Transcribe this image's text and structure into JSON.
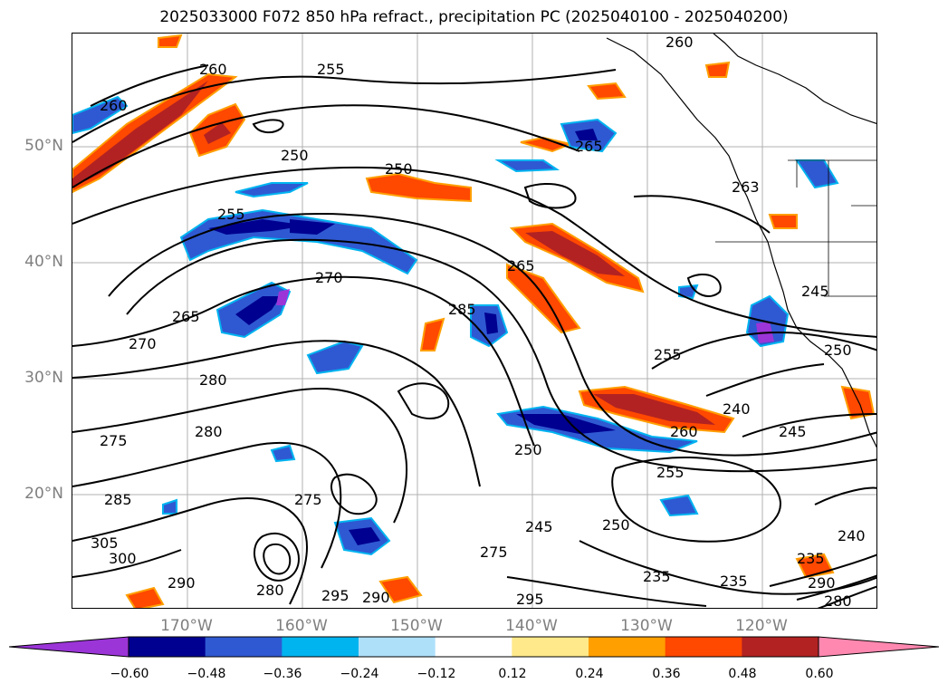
{
  "title": "2025033000 F072 850 hPa refract., precipitation PC (2025040100 - 2025040200)",
  "latitude_labels": [
    "50°N",
    "40°N",
    "30°N",
    "20°N"
  ],
  "longitude_labels": [
    "170°W",
    "160°W",
    "150°W",
    "140°W",
    "130°W",
    "120°W"
  ],
  "colorbar": {
    "colors": [
      "#9b35d8",
      "#000090",
      "#2f59d2",
      "#00b4f0",
      "#aee0fa",
      "#ffffff",
      "#ffe98a",
      "#ff9f00",
      "#ff4800",
      "#b22222",
      "#ff88b0"
    ],
    "tick_labels": [
      "−0.60",
      "−0.48",
      "−0.36",
      "−0.24",
      "−0.12",
      "0.12",
      "0.24",
      "0.36",
      "0.48",
      "0.60"
    ]
  },
  "contour_labels": [
    "260",
    "255",
    "260",
    "265",
    "250",
    "250",
    "255",
    "260",
    "265",
    "265",
    "270",
    "285",
    "263",
    "245",
    "250",
    "270",
    "280",
    "255",
    "240",
    "275",
    "280",
    "250",
    "260",
    "245",
    "255",
    "285",
    "275",
    "245",
    "250",
    "305",
    "300",
    "275",
    "235",
    "235",
    "235",
    "240",
    "290",
    "295",
    "295",
    "290",
    "290",
    "280",
    "280"
  ]
}
